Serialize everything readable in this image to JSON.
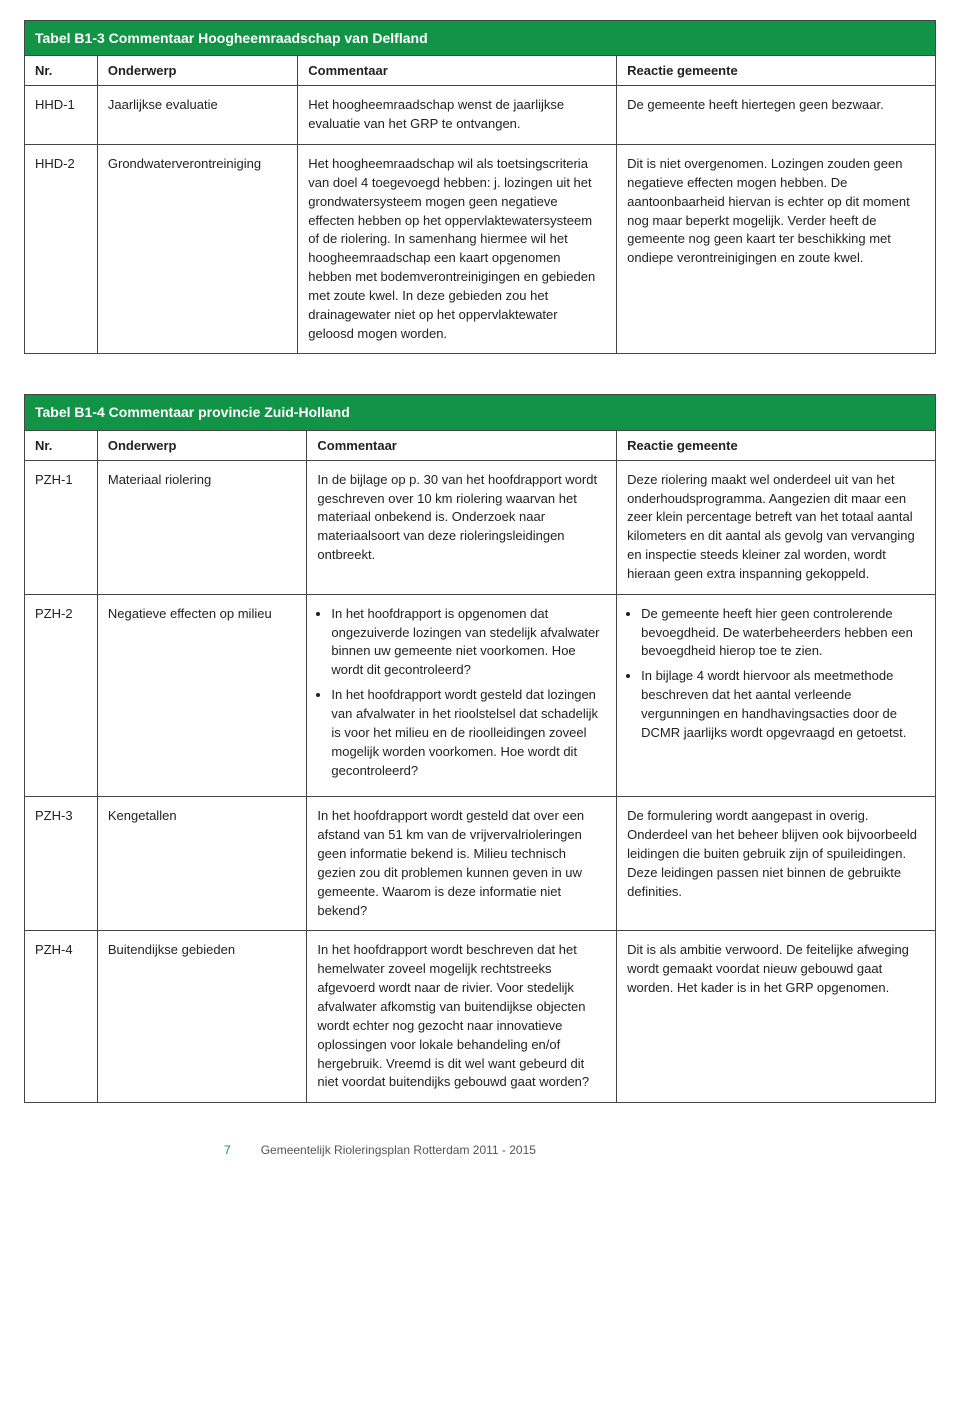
{
  "table1": {
    "title": "Tabel B1-3 Commentaar Hoogheemraadschap van Delfland",
    "columns": [
      "Nr.",
      "Onderwerp",
      "Commentaar",
      "Reactie gemeente"
    ],
    "rows": [
      {
        "nr": "HHD-1",
        "onderwerp": "Jaarlijkse evaluatie",
        "commentaar": "Het hoogheemraadschap wenst de jaarlijkse evaluatie van het GRP te ontvangen.",
        "reactie": "De gemeente heeft hiertegen geen bezwaar."
      },
      {
        "nr": "HHD-2",
        "onderwerp": "Grondwaterverontreiniging",
        "commentaar": "Het hoogheemraadschap wil als toetsingscriteria van doel 4 toegevoegd hebben: j. lozingen uit het grondwatersysteem mogen geen negatieve effecten hebben op het oppervlaktewatersysteem of de riolering. In samenhang hiermee wil het hoogheemraadschap een kaart opgenomen hebben met bodemverontreinigingen en gebieden met zoute kwel. In deze gebieden zou het drainagewater niet op het oppervlaktewater geloosd mogen worden.",
        "reactie": "Dit is niet overgenomen. Lozingen zouden geen negatieve effecten mogen hebben. De aantoonbaarheid hiervan is echter op dit moment nog maar beperkt mogelijk. Verder heeft de gemeente nog geen kaart ter beschikking met ondiepe verontreinigingen en zoute kwel."
      }
    ]
  },
  "table2": {
    "title": "Tabel B1-4 Commentaar provincie Zuid-Holland",
    "columns": [
      "Nr.",
      "Onderwerp",
      "Commentaar",
      "Reactie gemeente"
    ],
    "rows": [
      {
        "nr": "PZH-1",
        "onderwerp": "Materiaal riolering",
        "commentaar_text": "In de bijlage op p. 30 van het hoofdrapport wordt geschreven over 10 km riolering waarvan het materiaal onbekend is. Onderzoek naar materiaalsoort van deze rioleringsleidingen ontbreekt.",
        "reactie_text": "Deze riolering maakt wel onderdeel uit van het onderhoudsprogramma. Aangezien dit maar een zeer klein percentage betreft van het totaal aantal kilometers en dit aantal als gevolg van vervanging en inspectie steeds kleiner zal worden, wordt hieraan geen extra inspanning gekoppeld."
      },
      {
        "nr": "PZH-2",
        "onderwerp": "Negatieve effecten op milieu",
        "commentaar_bullets": [
          "In het hoofdrapport is opgenomen dat ongezuiverde lozingen van stedelijk afvalwater binnen uw gemeente niet voorkomen. Hoe wordt dit gecontroleerd?",
          "In het hoofdrapport wordt gesteld dat lozingen van afvalwater in het rioolstelsel dat schadelijk is voor het milieu en de rioolleidingen zoveel mogelijk worden voorkomen. Hoe wordt dit gecontroleerd?"
        ],
        "reactie_bullets": [
          "De gemeente heeft hier geen controlerende bevoegdheid. De waterbeheerders hebben een bevoegdheid hierop toe te zien.",
          "In bijlage 4 wordt hiervoor als meetmethode beschreven dat het aantal verleende vergunningen en handhavingsacties door de DCMR jaarlijks wordt opgevraagd en getoetst."
        ]
      },
      {
        "nr": "PZH-3",
        "onderwerp": "Kengetallen",
        "commentaar_text": "In het hoofdrapport wordt gesteld dat over een afstand van 51 km van de vrijvervalrioleringen geen informatie bekend is. Milieu technisch gezien zou dit problemen kunnen geven in uw gemeente. Waarom is deze informatie niet bekend?",
        "reactie_text": "De formulering wordt aangepast in overig. Onderdeel van het beheer blijven ook bijvoorbeeld leidingen die buiten gebruik zijn of spuileidingen. Deze leidingen passen niet binnen de gebruikte definities."
      },
      {
        "nr": "PZH-4",
        "onderwerp": "Buitendijkse gebieden",
        "commentaar_text": "In het hoofdrapport wordt beschreven dat het hemelwater zoveel mogelijk rechtstreeks afgevoerd wordt naar de rivier. Voor stedelijk afvalwater afkomstig van buitendijkse objecten wordt echter nog gezocht naar innovatieve oplossingen voor lokale behandeling en/of hergebruik. Vreemd is dit wel want gebeurd dit niet voordat buitendijks gebouwd gaat worden?",
        "reactie_text": "Dit is als ambitie verwoord. De feitelijke afweging wordt gemaakt voordat nieuw gebouwd gaat worden. Het kader is in het GRP opgenomen."
      }
    ]
  },
  "footer": {
    "page": "7",
    "title": "Gemeentelijk Rioleringsplan Rotterdam 2011 - 2015"
  },
  "colors": {
    "header_bg": "#129447",
    "header_text": "#ffffff",
    "border": "#444444"
  }
}
